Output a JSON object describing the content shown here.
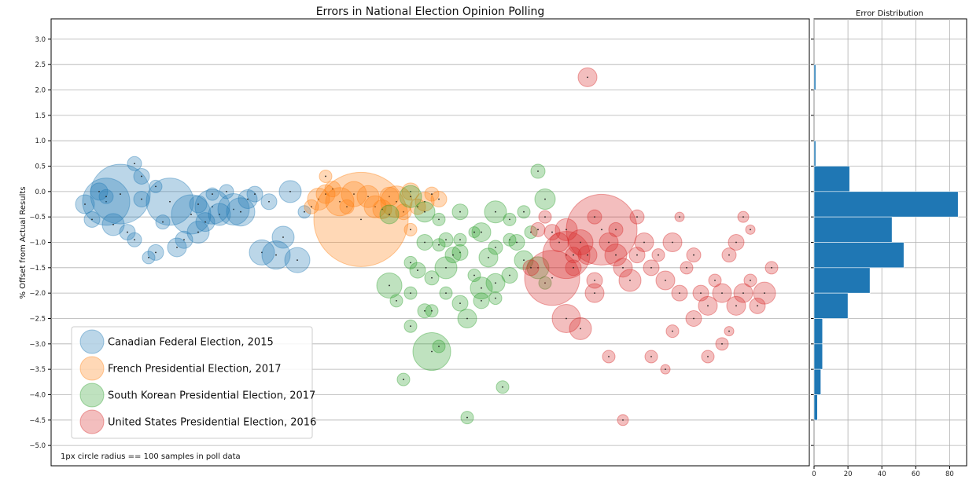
{
  "chart_data": [
    {
      "type": "scatter",
      "title": "Errors in National Election Opinion Polling",
      "xlabel": "",
      "ylabel": "% Offset from Actual Results",
      "ylim": [
        -5.4,
        3.4
      ],
      "yticks": [
        "3.0",
        "2.5",
        "2.0",
        "1.5",
        "1.0",
        "0.5",
        "0.0",
        "−0.5",
        "−1.0",
        "−1.5",
        "−2.0",
        "−2.5",
        "−3.0",
        "−3.5",
        "−4.0",
        "−4.5",
        "−5.0"
      ],
      "grid": true,
      "legend_position": "lower-left",
      "annotation": "1px circle radius == 100 samples in poll data",
      "series": [
        {
          "name": "Canadian Federal Election, 2015",
          "color": "#1f77b4",
          "points": [
            [
              0.05,
              -0.2,
              30
            ],
            [
              0.07,
              -0.05,
              38
            ],
            [
              0.14,
              -0.2,
              30
            ],
            [
              0.17,
              -0.45,
              25
            ],
            [
              0.2,
              -0.3,
              22
            ],
            [
              0.21,
              -0.45,
              14
            ],
            [
              0.23,
              -0.35,
              20
            ],
            [
              0.02,
              -0.25,
              12
            ],
            [
              0.03,
              -0.55,
              10
            ],
            [
              0.06,
              -0.65,
              14
            ],
            [
              0.08,
              -0.8,
              10
            ],
            [
              0.09,
              -0.95,
              9
            ],
            [
              0.11,
              -1.3,
              8
            ],
            [
              0.12,
              -1.2,
              10
            ],
            [
              0.15,
              -1.1,
              12
            ],
            [
              0.16,
              -0.95,
              11
            ],
            [
              0.18,
              -0.8,
              14
            ],
            [
              0.19,
              -0.6,
              12
            ],
            [
              0.24,
              -0.4,
              18
            ],
            [
              0.25,
              -0.15,
              12
            ],
            [
              0.26,
              -0.05,
              10
            ],
            [
              0.27,
              -1.2,
              16
            ],
            [
              0.29,
              -1.25,
              18
            ],
            [
              0.3,
              -0.9,
              14
            ],
            [
              0.31,
              -0.0,
              14
            ],
            [
              0.32,
              -1.35,
              16
            ],
            [
              0.09,
              0.55,
              9
            ],
            [
              0.1,
              0.3,
              10
            ],
            [
              0.12,
              0.1,
              8
            ],
            [
              0.04,
              0.0,
              11
            ],
            [
              0.05,
              -0.1,
              9
            ],
            [
              0.13,
              -0.6,
              9
            ],
            [
              0.22,
              0.0,
              9
            ],
            [
              0.28,
              -0.2,
              10
            ],
            [
              0.33,
              -0.4,
              8
            ],
            [
              0.1,
              -0.15,
              10
            ],
            [
              0.18,
              -0.25,
              11
            ],
            [
              0.2,
              -0.05,
              8
            ]
          ]
        },
        {
          "name": "French Presidential Election, 2017",
          "color": "#ff7f0e",
          "points": [
            [
              0.35,
              -0.15,
              14
            ],
            [
              0.36,
              -0.05,
              12
            ],
            [
              0.37,
              0.05,
              10
            ],
            [
              0.38,
              -0.2,
              18
            ],
            [
              0.4,
              -0.05,
              16
            ],
            [
              0.43,
              -0.3,
              14
            ],
            [
              0.45,
              -0.1,
              12
            ],
            [
              0.47,
              -0.4,
              10
            ],
            [
              0.48,
              -0.0,
              11
            ],
            [
              0.5,
              -0.2,
              12
            ],
            [
              0.52,
              -0.15,
              10
            ],
            [
              0.46,
              -0.2,
              20
            ],
            [
              0.42,
              -0.1,
              14
            ],
            [
              0.44,
              -0.35,
              12
            ],
            [
              0.49,
              -0.3,
              10
            ],
            [
              0.51,
              -0.05,
              9
            ],
            [
              0.39,
              -0.3,
              9
            ],
            [
              0.41,
              -0.55,
              60
            ],
            [
              0.48,
              -0.75,
              8
            ],
            [
              0.34,
              -0.3,
              9
            ],
            [
              0.36,
              0.3,
              8
            ]
          ]
        },
        {
          "name": "South Korean Presidential Election, 2017",
          "color": "#2ca02c",
          "points": [
            [
              0.45,
              -0.45,
              12
            ],
            [
              0.48,
              -0.1,
              14
            ],
            [
              0.5,
              -0.4,
              13
            ],
            [
              0.52,
              -0.55,
              8
            ],
            [
              0.55,
              -0.4,
              10
            ],
            [
              0.58,
              -0.8,
              12
            ],
            [
              0.6,
              -0.4,
              14
            ],
            [
              0.62,
              -0.55,
              8
            ],
            [
              0.64,
              -0.4,
              8
            ],
            [
              0.66,
              0.4,
              9
            ],
            [
              0.67,
              -0.15,
              13
            ],
            [
              0.48,
              -1.4,
              8
            ],
            [
              0.49,
              -1.55,
              10
            ],
            [
              0.51,
              -1.7,
              9
            ],
            [
              0.52,
              -1.05,
              8
            ],
            [
              0.53,
              -1.5,
              14
            ],
            [
              0.55,
              -1.2,
              10
            ],
            [
              0.57,
              -1.65,
              8
            ],
            [
              0.58,
              -1.9,
              14
            ],
            [
              0.6,
              -1.8,
              12
            ],
            [
              0.62,
              -1.65,
              10
            ],
            [
              0.64,
              -1.35,
              12
            ],
            [
              0.66,
              -1.5,
              14
            ],
            [
              0.67,
              -1.8,
              8
            ],
            [
              0.45,
              -1.85,
              16
            ],
            [
              0.46,
              -2.15,
              8
            ],
            [
              0.48,
              -2.0,
              8
            ],
            [
              0.5,
              -2.35,
              9
            ],
            [
              0.51,
              -2.35,
              8
            ],
            [
              0.53,
              -2.0,
              8
            ],
            [
              0.55,
              -2.2,
              10
            ],
            [
              0.56,
              -2.5,
              12
            ],
            [
              0.58,
              -2.15,
              10
            ],
            [
              0.6,
              -2.1,
              8
            ],
            [
              0.48,
              -2.65,
              8
            ],
            [
              0.51,
              -3.15,
              24
            ],
            [
              0.52,
              -3.05,
              8
            ],
            [
              0.47,
              -3.7,
              8
            ],
            [
              0.5,
              -1.0,
              10
            ],
            [
              0.53,
              -0.95,
              9
            ],
            [
              0.55,
              -0.95,
              8
            ],
            [
              0.57,
              -0.8,
              7
            ],
            [
              0.6,
              -1.1,
              9
            ],
            [
              0.62,
              -0.95,
              8
            ],
            [
              0.63,
              -1.0,
              10
            ],
            [
              0.65,
              -0.8,
              8
            ],
            [
              0.56,
              -4.45,
              8
            ],
            [
              0.61,
              -3.85,
              8
            ],
            [
              0.54,
              -1.25,
              10
            ],
            [
              0.59,
              -1.3,
              12
            ]
          ]
        },
        {
          "name": "United States Presidential Election, 2016",
          "color": "#d62728",
          "points": [
            [
              0.73,
              2.25,
              12
            ],
            [
              0.75,
              -0.75,
              45
            ],
            [
              0.7,
              -1.25,
              30
            ],
            [
              0.68,
              -1.7,
              35
            ],
            [
              0.7,
              -2.5,
              18
            ],
            [
              0.72,
              -2.7,
              14
            ],
            [
              0.74,
              -2.0,
              12
            ],
            [
              0.65,
              -1.5,
              10
            ],
            [
              0.66,
              -0.75,
              9
            ],
            [
              0.67,
              -0.5,
              8
            ],
            [
              0.68,
              -0.8,
              10
            ],
            [
              0.69,
              -1.0,
              12
            ],
            [
              0.7,
              -0.75,
              14
            ],
            [
              0.71,
              -1.25,
              10
            ],
            [
              0.72,
              -1.0,
              16
            ],
            [
              0.73,
              -1.25,
              12
            ],
            [
              0.74,
              -0.5,
              9
            ],
            [
              0.76,
              -1.0,
              12
            ],
            [
              0.77,
              -1.25,
              14
            ],
            [
              0.78,
              -1.5,
              12
            ],
            [
              0.79,
              -1.75,
              14
            ],
            [
              0.8,
              -1.25,
              10
            ],
            [
              0.81,
              -1.0,
              12
            ],
            [
              0.82,
              -1.5,
              10
            ],
            [
              0.83,
              -1.25,
              8
            ],
            [
              0.84,
              -1.75,
              12
            ],
            [
              0.85,
              -1.0,
              12
            ],
            [
              0.86,
              -2.0,
              10
            ],
            [
              0.87,
              -1.5,
              8
            ],
            [
              0.88,
              -1.25,
              9
            ],
            [
              0.89,
              -2.0,
              10
            ],
            [
              0.9,
              -2.25,
              12
            ],
            [
              0.91,
              -1.75,
              8
            ],
            [
              0.92,
              -2.0,
              12
            ],
            [
              0.93,
              -1.25,
              9
            ],
            [
              0.94,
              -1.0,
              10
            ],
            [
              0.95,
              -2.0,
              12
            ],
            [
              0.96,
              -1.75,
              8
            ],
            [
              0.97,
              -2.25,
              10
            ],
            [
              0.98,
              -2.0,
              14
            ],
            [
              0.99,
              -1.5,
              8
            ],
            [
              0.76,
              -3.25,
              8
            ],
            [
              0.82,
              -3.25,
              8
            ],
            [
              0.84,
              -3.5,
              6
            ],
            [
              0.85,
              -2.75,
              8
            ],
            [
              0.9,
              -3.25,
              8
            ],
            [
              0.92,
              -3.0,
              8
            ],
            [
              0.93,
              -2.75,
              6
            ],
            [
              0.78,
              -4.5,
              7
            ],
            [
              0.95,
              -0.5,
              7
            ],
            [
              0.96,
              -0.75,
              6
            ],
            [
              0.86,
              -0.5,
              6
            ],
            [
              0.8,
              -0.5,
              9
            ],
            [
              0.71,
              -1.5,
              10
            ],
            [
              0.74,
              -1.75,
              10
            ],
            [
              0.77,
              -0.75,
              9
            ],
            [
              0.88,
              -2.5,
              10
            ],
            [
              0.94,
              -2.25,
              12
            ]
          ]
        }
      ]
    },
    {
      "type": "bar",
      "orientation": "horizontal",
      "title": "Error Distribution",
      "bin_width": 0.5,
      "bins": [
        {
          "center": 2.25,
          "count": 1
        },
        {
          "center": 0.75,
          "count": 1
        },
        {
          "center": 0.25,
          "count": 21
        },
        {
          "center": -0.25,
          "count": 85
        },
        {
          "center": -0.75,
          "count": 46
        },
        {
          "center": -1.25,
          "count": 53
        },
        {
          "center": -1.75,
          "count": 33
        },
        {
          "center": -2.25,
          "count": 20
        },
        {
          "center": -2.75,
          "count": 5
        },
        {
          "center": -3.25,
          "count": 5
        },
        {
          "center": -3.75,
          "count": 4
        },
        {
          "center": -4.25,
          "count": 2
        }
      ],
      "xlim": [
        0,
        90
      ],
      "xticks": [
        "0",
        "20",
        "40",
        "60",
        "80"
      ],
      "color": "#1f77b4",
      "grid": true
    }
  ]
}
